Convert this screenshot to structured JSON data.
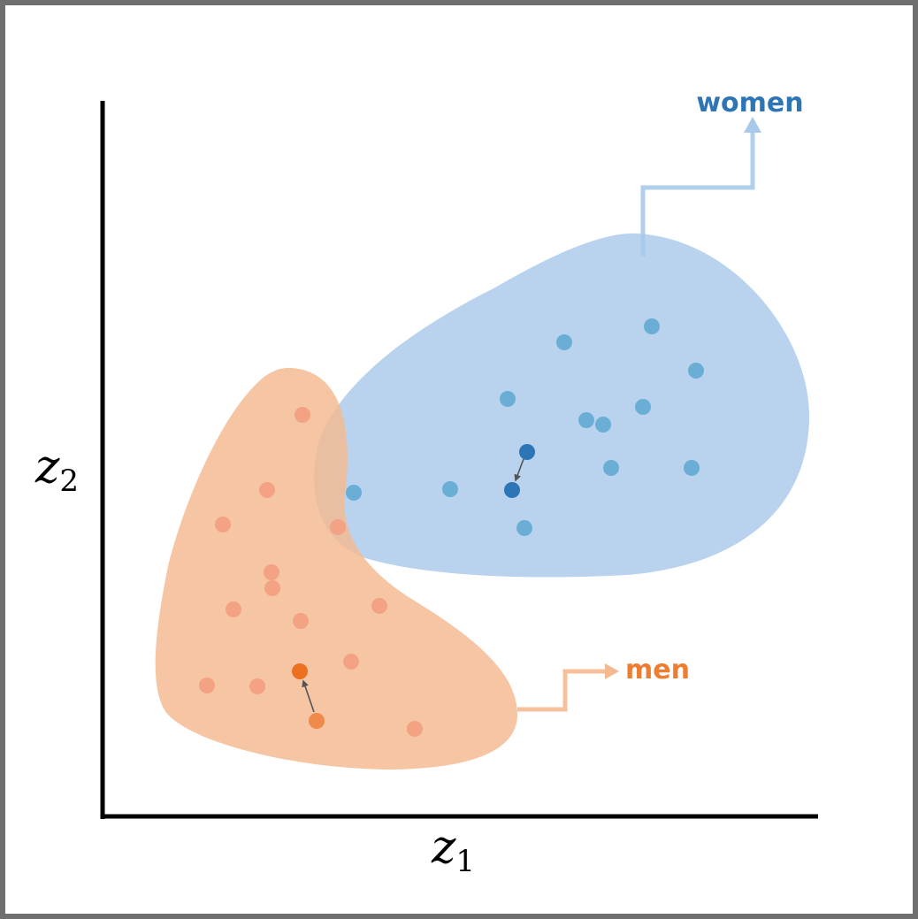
{
  "axes": {
    "x": {
      "symbol": "z",
      "subscript": "1"
    },
    "y": {
      "symbol": "z",
      "subscript": "2"
    }
  },
  "groups": {
    "women": {
      "label": "women",
      "label_color": "#2e75b6",
      "region_color": "#a9c9ea",
      "point_color": "#6aaed6",
      "highlight_color": "#2e75b6"
    },
    "men": {
      "label": "men",
      "label_color": "#ed7d31",
      "region_color": "#f4b990",
      "point_color": "#f3a283",
      "highlight_color": "#ed7020"
    }
  },
  "arrow_color": "#666666"
}
